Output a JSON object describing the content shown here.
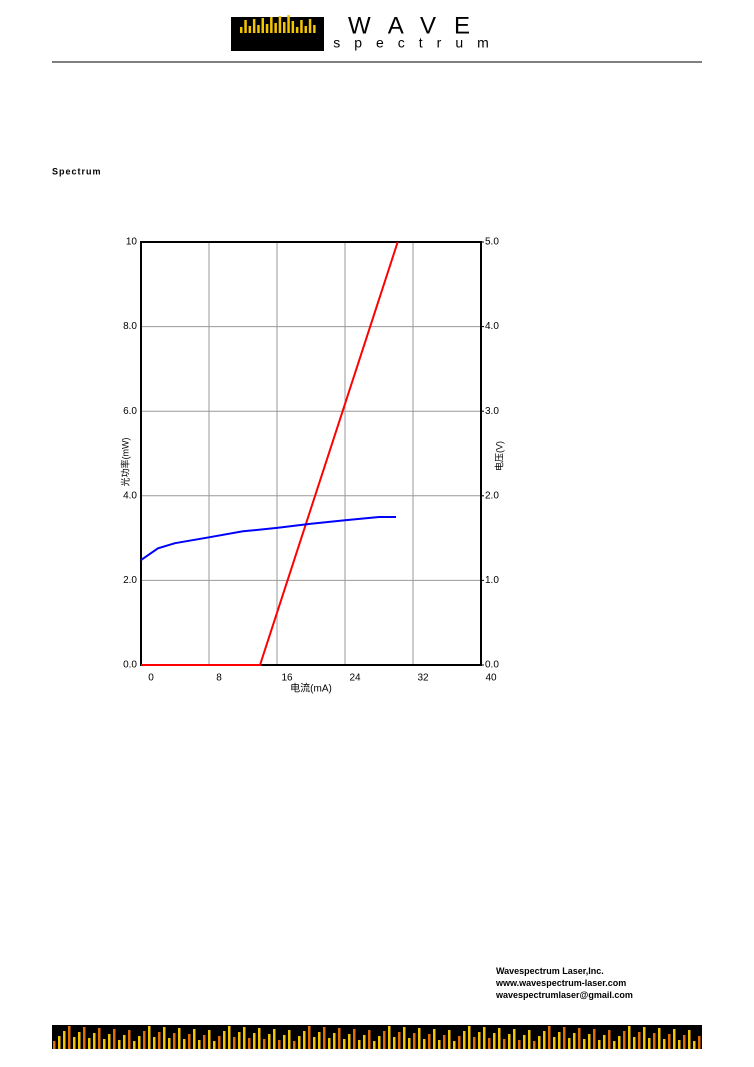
{
  "header": {
    "logo_word": "WAVE",
    "logo_sub": "spectrum"
  },
  "section_title": "Spectrum",
  "chart_data": {
    "type": "line",
    "x_label": "电流(mA)",
    "y_label": "光功率(mW)",
    "y2_label": "电压(V)",
    "xlim": [
      0,
      40
    ],
    "xticks": [
      0,
      8,
      16,
      24,
      32,
      40
    ],
    "ylim": [
      0,
      10
    ],
    "yticks": [
      {
        "value": 0,
        "label": "0.0"
      },
      {
        "value": 2,
        "label": "2.0"
      },
      {
        "value": 4,
        "label": "4.0"
      },
      {
        "value": 6,
        "label": "6.0"
      },
      {
        "value": 8,
        "label": "8.0"
      },
      10
    ],
    "y2lim": [
      0,
      5
    ],
    "y2ticks": [
      {
        "value": 0,
        "label": "0.0"
      },
      {
        "value": 1,
        "label": "1.0"
      },
      {
        "value": 2,
        "label": "2.0"
      },
      {
        "value": 3,
        "label": "3.0"
      },
      {
        "value": 4,
        "label": "4.0"
      },
      {
        "value": 5,
        "label": "5.0"
      }
    ],
    "grid": true,
    "series": [
      {
        "name": "Power",
        "color": "#ff0000",
        "x": [
          0,
          14,
          30.2
        ],
        "values": [
          0,
          0,
          10
        ]
      },
      {
        "name": "Voltage",
        "color": "#0000ff",
        "axis": "y2",
        "x": [
          0,
          2,
          4,
          8,
          12,
          16,
          20,
          24,
          28,
          30
        ],
        "values": [
          1.24,
          1.38,
          1.44,
          1.51,
          1.58,
          1.62,
          1.67,
          1.71,
          1.75,
          1.75
        ]
      }
    ]
  },
  "footer": {
    "lines": [
      "Wavespectrum Laser,Inc.",
      "www.wavespectrum-laser.com",
      "wavespectrumlaser@gmail.com"
    ]
  }
}
